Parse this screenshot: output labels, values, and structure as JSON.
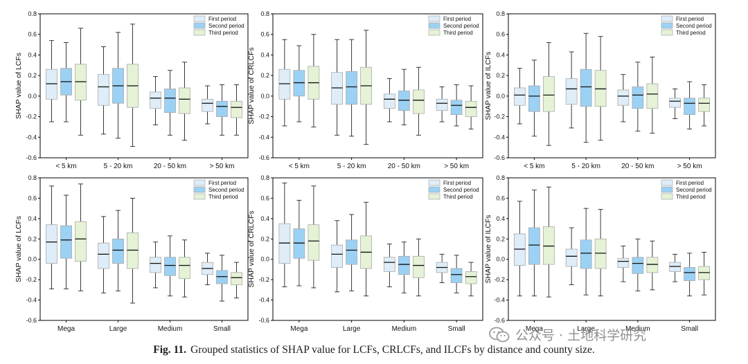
{
  "colors": {
    "first": "#deedf8",
    "second": "#9bd1f4",
    "third": "#e5f2d5",
    "edge": "#a9a9a9",
    "whisker": "#222222"
  },
  "legend": [
    "First period",
    "Second period",
    "Third period"
  ],
  "caption": {
    "label": "Fig. 11.",
    "text": "Grouped statistics of SHAP value for LCFs, CRLCFs, and ILCFs by distance and county size."
  },
  "watermark": {
    "text": "公众号 · 土地科学研究",
    "icon": "wechat-icon"
  },
  "chart_data": [
    {
      "type": "boxplot",
      "ylabel": "SHAP value of LCFs",
      "ylim": [
        -0.6,
        0.8
      ],
      "yticks": [
        "0.8",
        "0.6",
        "0.4",
        "0.2",
        "0.0",
        "-0.2",
        "-0.4",
        "-0.6"
      ],
      "categories": [
        "< 5 km",
        "5 - 20 km",
        "20 - 50 km",
        "> 50 km"
      ],
      "series": [
        {
          "name": "First period",
          "boxes": [
            [
              -0.25,
              -0.03,
              0.12,
              0.26,
              0.54
            ],
            [
              -0.37,
              -0.09,
              0.09,
              0.21,
              0.48
            ],
            [
              -0.28,
              -0.12,
              -0.02,
              0.04,
              0.19
            ],
            [
              -0.27,
              -0.15,
              -0.07,
              -0.03,
              0.1
            ]
          ]
        },
        {
          "name": "Second period",
          "boxes": [
            [
              -0.25,
              0.01,
              0.14,
              0.27,
              0.52
            ],
            [
              -0.41,
              -0.07,
              0.1,
              0.27,
              0.62
            ],
            [
              -0.38,
              -0.16,
              -0.02,
              0.07,
              0.25
            ],
            [
              -0.38,
              -0.2,
              -0.1,
              -0.05,
              0.11
            ]
          ]
        },
        {
          "name": "Third period",
          "boxes": [
            [
              -0.38,
              -0.04,
              0.14,
              0.31,
              0.66
            ],
            [
              -0.49,
              -0.11,
              0.1,
              0.31,
              0.7
            ],
            [
              -0.43,
              -0.17,
              -0.03,
              0.08,
              0.33
            ],
            [
              -0.38,
              -0.21,
              -0.11,
              -0.05,
              0.11
            ]
          ]
        }
      ]
    },
    {
      "type": "boxplot",
      "ylabel": "SHAP value of CRLCFs",
      "ylim": [
        -0.6,
        0.8
      ],
      "yticks": [
        "0.8",
        "0.6",
        "0.4",
        "0.2",
        "0.0",
        "-0.2",
        "-0.4",
        "-0.6"
      ],
      "categories": [
        "< 5 km",
        "5 - 20 km",
        "20 - 50 km",
        "> 50 km"
      ],
      "series": [
        {
          "name": "First period",
          "boxes": [
            [
              -0.29,
              -0.03,
              0.12,
              0.26,
              0.55
            ],
            [
              -0.38,
              -0.08,
              0.08,
              0.23,
              0.55
            ],
            [
              -0.25,
              -0.12,
              -0.03,
              0.02,
              0.17
            ],
            [
              -0.25,
              -0.14,
              -0.07,
              -0.03,
              0.09
            ]
          ]
        },
        {
          "name": "Second period",
          "boxes": [
            [
              -0.25,
              0.0,
              0.13,
              0.25,
              0.49
            ],
            [
              -0.39,
              -0.08,
              0.09,
              0.24,
              0.55
            ],
            [
              -0.28,
              -0.14,
              -0.04,
              0.05,
              0.26
            ],
            [
              -0.29,
              -0.18,
              -0.09,
              -0.04,
              0.11
            ]
          ]
        },
        {
          "name": "Third period",
          "boxes": [
            [
              -0.3,
              -0.03,
              0.13,
              0.29,
              0.6
            ],
            [
              -0.47,
              -0.08,
              0.1,
              0.28,
              0.64
            ],
            [
              -0.38,
              -0.17,
              -0.04,
              0.06,
              0.28
            ],
            [
              -0.32,
              -0.2,
              -0.11,
              -0.05,
              0.1
            ]
          ]
        }
      ]
    },
    {
      "type": "boxplot",
      "ylabel": "SHAP value of ILCFs",
      "ylim": [
        -0.6,
        0.8
      ],
      "yticks": [
        "0.8",
        "0.6",
        "0.4",
        "0.2",
        "0.0",
        "-0.2",
        "-0.4",
        "-0.6"
      ],
      "categories": [
        "< 5 km",
        "5 - 20 km",
        "20 - 50 km",
        "> 50 km"
      ],
      "series": [
        {
          "name": "First period",
          "boxes": [
            [
              -0.27,
              -0.09,
              0.01,
              0.08,
              0.27
            ],
            [
              -0.31,
              -0.08,
              0.07,
              0.17,
              0.43
            ],
            [
              -0.25,
              -0.09,
              0.0,
              0.06,
              0.21
            ],
            [
              -0.22,
              -0.11,
              -0.05,
              -0.02,
              0.07
            ]
          ]
        },
        {
          "name": "Second period",
          "boxes": [
            [
              -0.39,
              -0.15,
              0.0,
              0.1,
              0.35
            ],
            [
              -0.45,
              -0.1,
              0.09,
              0.26,
              0.61
            ],
            [
              -0.34,
              -0.12,
              0.01,
              0.09,
              0.33
            ],
            [
              -0.32,
              -0.18,
              -0.07,
              -0.02,
              0.14
            ]
          ]
        },
        {
          "name": "Third period",
          "boxes": [
            [
              -0.48,
              -0.15,
              0.01,
              0.19,
              0.52
            ],
            [
              -0.43,
              -0.1,
              0.07,
              0.25,
              0.58
            ],
            [
              -0.36,
              -0.12,
              0.02,
              0.12,
              0.38
            ],
            [
              -0.29,
              -0.15,
              -0.07,
              -0.02,
              0.11
            ]
          ]
        }
      ]
    },
    {
      "type": "boxplot",
      "ylabel": "SHAP value of LCFs",
      "ylim": [
        -0.6,
        0.8
      ],
      "yticks": [
        "0.8",
        "0.6",
        "0.4",
        "0.2",
        "0.0",
        "-0.2",
        "-0.4",
        "-0.6"
      ],
      "categories": [
        "Mega",
        "Large",
        "Medium",
        "Small"
      ],
      "series": [
        {
          "name": "First period",
          "boxes": [
            [
              -0.29,
              -0.04,
              0.17,
              0.34,
              0.72
            ],
            [
              -0.33,
              -0.09,
              0.05,
              0.16,
              0.42
            ],
            [
              -0.28,
              -0.13,
              -0.04,
              0.02,
              0.17
            ],
            [
              -0.25,
              -0.15,
              -0.09,
              -0.03,
              0.06
            ]
          ]
        },
        {
          "name": "Second period",
          "boxes": [
            [
              -0.29,
              0.01,
              0.19,
              0.33,
              0.63
            ],
            [
              -0.31,
              -0.04,
              0.09,
              0.2,
              0.48
            ],
            [
              -0.36,
              -0.16,
              -0.06,
              0.02,
              0.23
            ],
            [
              -0.41,
              -0.24,
              -0.17,
              -0.11,
              0.04
            ]
          ]
        },
        {
          "name": "Third period",
          "boxes": [
            [
              -0.31,
              -0.02,
              0.2,
              0.37,
              0.74
            ],
            [
              -0.43,
              -0.09,
              0.09,
              0.26,
              0.6
            ],
            [
              -0.37,
              -0.19,
              -0.06,
              0.02,
              0.19
            ],
            [
              -0.38,
              -0.25,
              -0.18,
              -0.13,
              -0.03
            ]
          ]
        }
      ]
    },
    {
      "type": "boxplot",
      "ylabel": "SHAP value of CRLCFs",
      "ylim": [
        -0.6,
        0.8
      ],
      "yticks": [
        "0.8",
        "0.6",
        "0.4",
        "0.2",
        "0.0",
        "-0.2",
        "-0.4",
        "-0.6"
      ],
      "categories": [
        "Mega",
        "Large",
        "Medium",
        "Small"
      ],
      "series": [
        {
          "name": "First period",
          "boxes": [
            [
              -0.27,
              -0.04,
              0.16,
              0.35,
              0.75
            ],
            [
              -0.32,
              -0.08,
              0.05,
              0.14,
              0.38
            ],
            [
              -0.27,
              -0.12,
              -0.03,
              0.02,
              0.15
            ],
            [
              -0.23,
              -0.13,
              -0.08,
              -0.03,
              0.05
            ]
          ]
        },
        {
          "name": "Second period",
          "boxes": [
            [
              -0.26,
              0.01,
              0.16,
              0.3,
              0.58
            ],
            [
              -0.31,
              -0.05,
              0.09,
              0.19,
              0.44
            ],
            [
              -0.33,
              -0.15,
              -0.05,
              0.03,
              0.17
            ],
            [
              -0.33,
              -0.23,
              -0.15,
              -0.09,
              0.04
            ]
          ]
        },
        {
          "name": "Third period",
          "boxes": [
            [
              -0.28,
              -0.01,
              0.18,
              0.34,
              0.72
            ],
            [
              -0.36,
              -0.09,
              0.07,
              0.23,
              0.56
            ],
            [
              -0.36,
              -0.18,
              -0.06,
              0.03,
              0.2
            ],
            [
              -0.36,
              -0.24,
              -0.17,
              -0.12,
              -0.03
            ]
          ]
        }
      ]
    },
    {
      "type": "boxplot",
      "ylabel": "SHAP value of ILCFs",
      "ylim": [
        -0.6,
        0.8
      ],
      "yticks": [
        "0.8",
        "0.6",
        "0.4",
        "0.2",
        "0.0",
        "-0.2",
        "-0.4",
        "-0.6"
      ],
      "categories": [
        "Mega",
        "Large",
        "Medium",
        "Small"
      ],
      "series": [
        {
          "name": "First period",
          "boxes": [
            [
              -0.36,
              -0.06,
              0.1,
              0.25,
              0.57
            ],
            [
              -0.25,
              -0.07,
              0.03,
              0.1,
              0.31
            ],
            [
              -0.22,
              -0.08,
              -0.02,
              0.01,
              0.13
            ],
            [
              -0.22,
              -0.12,
              -0.07,
              -0.03,
              0.05
            ]
          ]
        },
        {
          "name": "Second period",
          "boxes": [
            [
              -0.36,
              -0.05,
              0.14,
              0.31,
              0.68
            ],
            [
              -0.35,
              -0.09,
              0.06,
              0.19,
              0.5
            ],
            [
              -0.31,
              -0.14,
              -0.04,
              0.02,
              0.2
            ],
            [
              -0.36,
              -0.21,
              -0.13,
              -0.08,
              0.06
            ]
          ]
        },
        {
          "name": "Third period",
          "boxes": [
            [
              -0.37,
              -0.05,
              0.13,
              0.32,
              0.71
            ],
            [
              -0.36,
              -0.09,
              0.06,
              0.2,
              0.49
            ],
            [
              -0.3,
              -0.13,
              -0.05,
              0.02,
              0.18
            ],
            [
              -0.35,
              -0.2,
              -0.13,
              -0.07,
              0.07
            ]
          ]
        }
      ]
    }
  ]
}
